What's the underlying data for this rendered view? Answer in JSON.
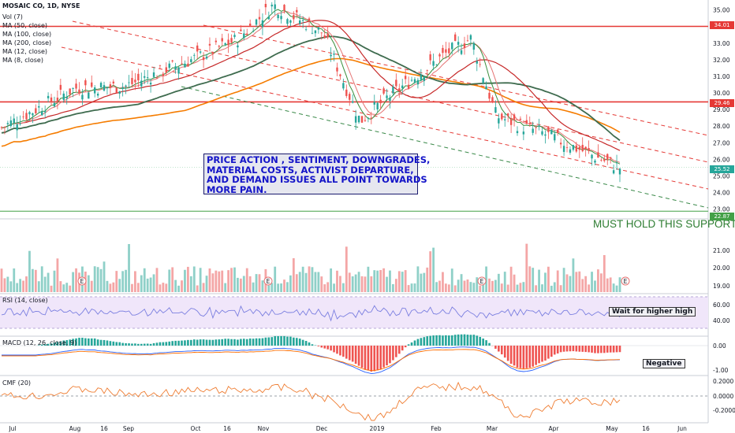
{
  "header": {
    "symbol": "MOSAIC CO, 1D, NYSE",
    "indicators": [
      "Vol (7)",
      "MA (50, close)",
      "MA (100, close)",
      "MA (200, close)",
      "MA (12, close)",
      "MA (8, close)"
    ]
  },
  "annotations": {
    "note": "PRICE ACTION , SENTIMENT, DOWNGRADES,\nMATERIAL COSTS, ACTIVIST DEPARTURE,\nAND DEMAND ISSUES ALL POINT TOWARDS\nMORE PAIN.",
    "support": "MUST HOLD THIS SUPPORT",
    "rsi_note": "Wait for higher high",
    "macd_note": "Negative",
    "earnings_marker": "E"
  },
  "panes": {
    "rsi_label": "RSI (14, close)",
    "macd_label": "MACD (12, 26, close, 9)",
    "cmf_label": "CMF (20)"
  },
  "price_tags": {
    "resistance_high": "34.01",
    "resistance_mid": "29.46",
    "current": "25.52",
    "support": "22.87"
  },
  "colors": {
    "up": "#26a69a",
    "down": "#ef5350",
    "ma50": "#c62828",
    "ma100": "#3e6b4e",
    "ma200": "#f57c00",
    "ma12": "#e57373",
    "ma8": "#388e3c",
    "horizontal": "#e53935",
    "support_line": "#43a047",
    "note_text": "#1414c8",
    "rsi_band": "#f0e6fa",
    "rsi_line": "#7b7fe0",
    "cmf_line": "#ef7d32"
  },
  "chart_data": {
    "type": "candlestick",
    "title": "MOSAIC CO, 1D, NYSE",
    "price_axis": {
      "ticks": [
        "35.00",
        "34.00",
        "33.00",
        "32.00",
        "31.00",
        "30.00",
        "29.00",
        "28.00",
        "27.00",
        "26.00",
        "25.00",
        "24.00",
        "23.00"
      ],
      "range": [
        22.6,
        35.6
      ]
    },
    "x_axis_labels": [
      "Jul",
      "Aug",
      "16",
      "Sep",
      "Oct",
      "16",
      "Nov",
      "Dec",
      "2019",
      "Feb",
      "Mar",
      "Apr",
      "May",
      "16",
      "Jun"
    ],
    "horizontal_levels": [
      34.01,
      29.46,
      22.87
    ],
    "close_path": [
      {
        "month": "Jul",
        "close": 27.9
      },
      {
        "month": "Aug",
        "close": 30.3
      },
      {
        "month": "Sep",
        "close": 30.4
      },
      {
        "month": "Oct",
        "close": 32.2
      },
      {
        "month": "Nov",
        "close": 33.2
      },
      {
        "month": "mid-Nov",
        "close": 35.3
      },
      {
        "month": "Dec",
        "close": 33.6
      },
      {
        "month": "late-Dec",
        "close": 28.3
      },
      {
        "month": "2019",
        "close": 29.6
      },
      {
        "month": "Feb",
        "close": 32.4
      },
      {
        "month": "late-Feb",
        "close": 33.3
      },
      {
        "month": "Mar",
        "close": 28.6
      },
      {
        "month": "Apr",
        "close": 27.5
      },
      {
        "month": "May",
        "close": 25.5
      }
    ],
    "volume_axis": {
      "ticks": [
        "21.00",
        "20.00",
        "19.00"
      ]
    },
    "rsi_axis": {
      "ticks": [
        "60.00",
        "40.00"
      ]
    },
    "macd_axis": {
      "ticks": [
        "0.00",
        "-1.00"
      ]
    },
    "cmf_axis": {
      "ticks": [
        "0.2000",
        "0.0000",
        "-0.2000"
      ]
    }
  }
}
